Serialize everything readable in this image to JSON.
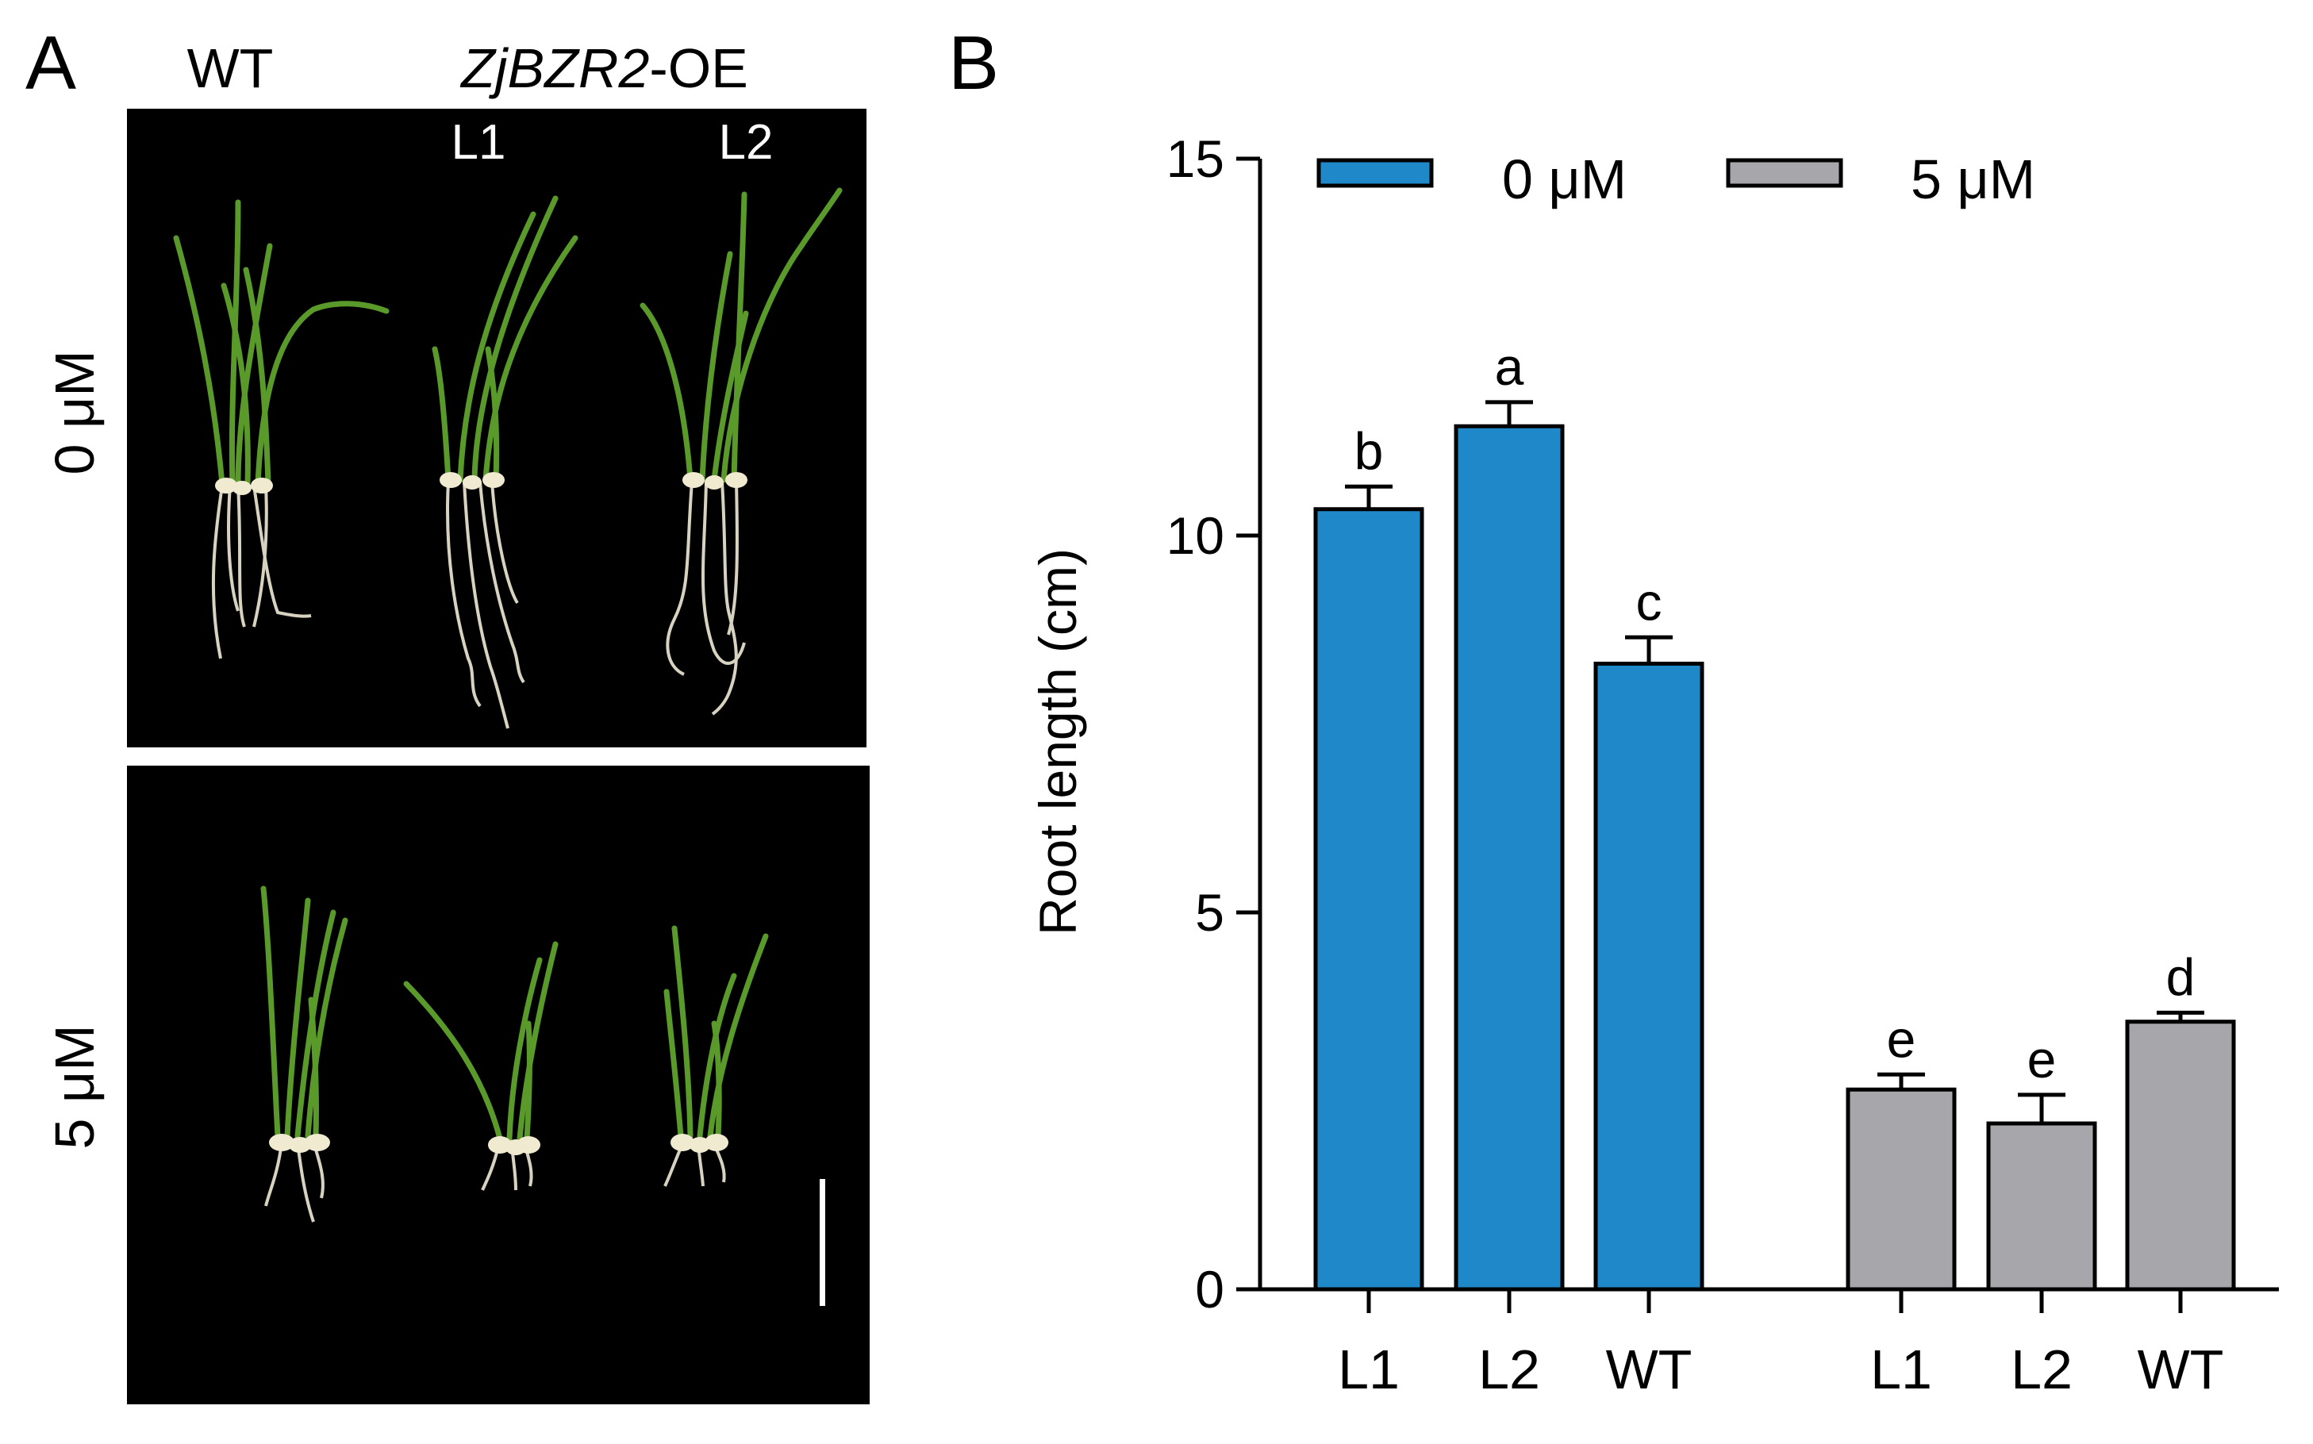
{
  "panel_a": {
    "label": "A",
    "col_wt": "WT",
    "col_oe_gene": "ZjBZR2",
    "col_oe_suffix": "-OE",
    "col_l1": "L1",
    "col_l2": "L2",
    "row_top": "0 μM",
    "row_bottom": "5 μM",
    "colors": {
      "background": "#000000",
      "leaf": "#5a9a2a",
      "root": "#d8d2c0",
      "seed": "#f0ead0",
      "scale_bar": "#ffffff"
    }
  },
  "panel_b": {
    "label": "B"
  },
  "chart_data": {
    "type": "bar",
    "ylabel": "Root length (cm)",
    "ylim": [
      0,
      15
    ],
    "yticks": [
      "0",
      "5",
      "10",
      "15"
    ],
    "legend_position": "top",
    "grid": false,
    "series": [
      {
        "name": "0 μM",
        "color": "#1f88c9",
        "categories": [
          "L1",
          "L2",
          "WT"
        ],
        "values": [
          10.35,
          11.45,
          8.3
        ],
        "errors": [
          0.3,
          0.32,
          0.35
        ],
        "letters": [
          "b",
          "a",
          "c"
        ]
      },
      {
        "name": "5 μM",
        "color": "#a7a7ab",
        "categories": [
          "L1",
          "L2",
          "WT"
        ],
        "values": [
          2.65,
          2.2,
          3.55
        ],
        "errors": [
          0.2,
          0.38,
          0.12
        ],
        "letters": [
          "e",
          "e",
          "d"
        ]
      }
    ]
  }
}
